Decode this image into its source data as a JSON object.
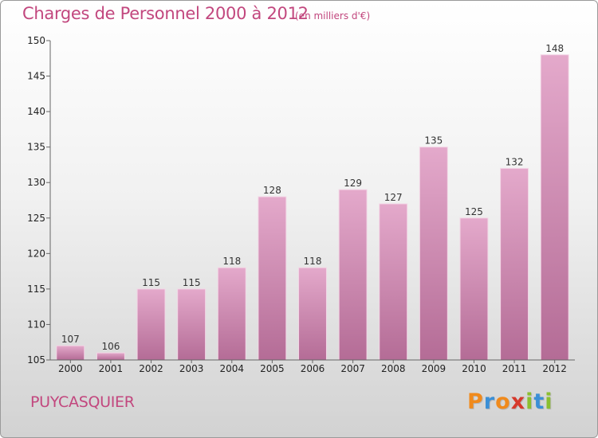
{
  "title": "Charges de Personnel 2000 à 2012",
  "unit_note": "(en milliers d'€)",
  "place": "PUYCASQUIER",
  "logo": {
    "text": "Proxiti",
    "letters": [
      {
        "ch": "P",
        "color": "#f08a1c"
      },
      {
        "ch": "r",
        "color": "#3b8fd6"
      },
      {
        "ch": "o",
        "color": "#f08a1c"
      },
      {
        "ch": "x",
        "color": "#d6392c"
      },
      {
        "ch": "i",
        "color": "#8bbf2f"
      },
      {
        "ch": "t",
        "color": "#3b8fd6"
      },
      {
        "ch": "i",
        "color": "#8bbf2f"
      }
    ]
  },
  "colors": {
    "bar_top": "#e4a9cb",
    "bar_bottom": "#b46c96",
    "accent": "#c2477e"
  },
  "chart_data": {
    "type": "bar",
    "title": "Charges de Personnel 2000 à 2012",
    "categories": [
      "2000",
      "2001",
      "2002",
      "2003",
      "2004",
      "2005",
      "2006",
      "2007",
      "2008",
      "2009",
      "2010",
      "2011",
      "2012"
    ],
    "values": [
      107,
      106,
      115,
      115,
      118,
      128,
      118,
      129,
      127,
      135,
      125,
      132,
      148
    ],
    "yticks": [
      "105",
      "110",
      "115",
      "120",
      "125",
      "130",
      "135",
      "140",
      "145",
      "150"
    ],
    "ylim": [
      105,
      150
    ],
    "grid": false,
    "legend": "none"
  }
}
